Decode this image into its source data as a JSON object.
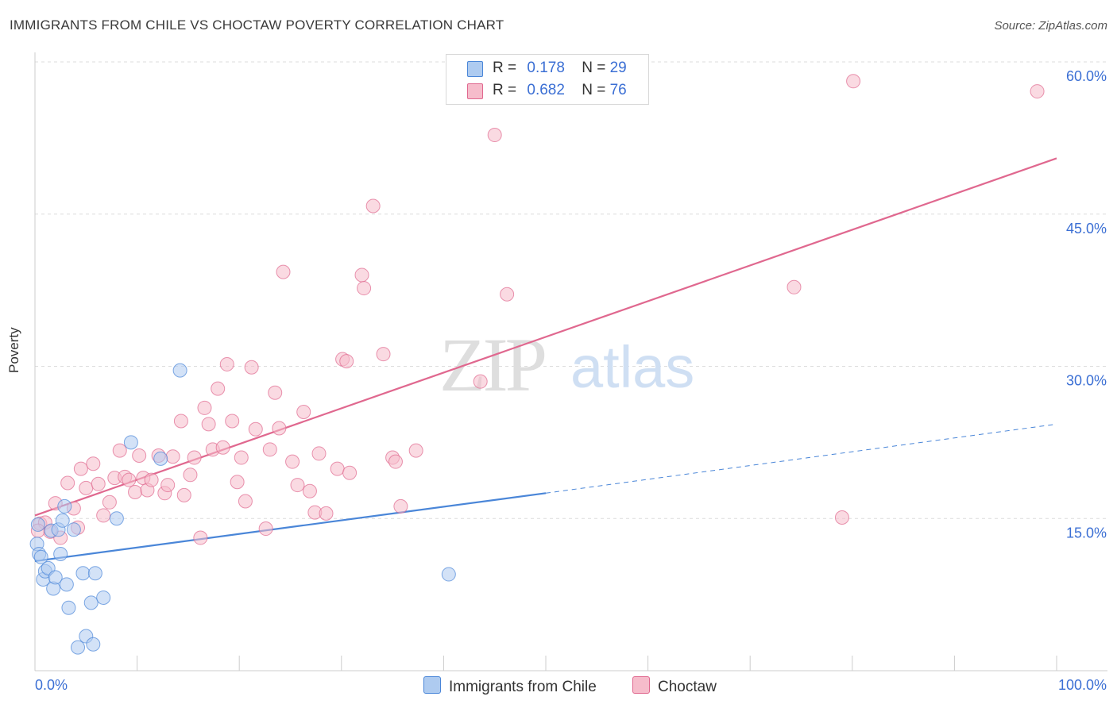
{
  "title": "IMMIGRANTS FROM CHILE VS CHOCTAW POVERTY CORRELATION CHART",
  "source": "Source: ZipAtlas.com",
  "watermark": {
    "zip": "ZIP",
    "atlas": "atlas"
  },
  "legend_top": [
    {
      "r_label": "R =",
      "r_value": "0.178",
      "n_label": "N =",
      "n_value": "29",
      "color": "#aecbf0"
    },
    {
      "r_label": "R =",
      "r_value": "0.682",
      "n_label": "N =",
      "n_value": "76",
      "color": "#f6bccb"
    }
  ],
  "legend_bottom": [
    {
      "label": "Immigrants from Chile",
      "color": "#aecbf0"
    },
    {
      "label": "Choctaw",
      "color": "#f6bccb"
    }
  ],
  "chart_data": {
    "type": "scatter",
    "title": "IMMIGRANTS FROM CHILE VS CHOCTAW POVERTY CORRELATION CHART",
    "xlabel": "",
    "ylabel": "Poverty",
    "xlim": [
      0,
      100
    ],
    "ylim": [
      0,
      60
    ],
    "x_tick_labels": [
      "0.0%",
      "100.0%"
    ],
    "y_tick_labels": [
      "15.0%",
      "30.0%",
      "45.0%",
      "60.0%"
    ],
    "y_ticks": [
      15,
      30,
      45,
      60
    ],
    "grid": true,
    "series": [
      {
        "name": "Immigrants from Chile",
        "color": "#4a86d8",
        "fill": "#aecbf0",
        "trend": {
          "x0": 0,
          "y0": 10.8,
          "x1": 50,
          "y1": 17.5,
          "dashed_to_x": 100,
          "dashed_to_y": 24.3
        },
        "points": [
          [
            0.2,
            12.5
          ],
          [
            0.4,
            11.5
          ],
          [
            0.6,
            11.2
          ],
          [
            0.8,
            9.0
          ],
          [
            1.0,
            9.8
          ],
          [
            1.3,
            10.1
          ],
          [
            1.6,
            13.8
          ],
          [
            1.8,
            8.1
          ],
          [
            2.0,
            9.2
          ],
          [
            2.3,
            13.9
          ],
          [
            2.5,
            11.5
          ],
          [
            2.7,
            14.8
          ],
          [
            2.9,
            16.2
          ],
          [
            3.1,
            8.5
          ],
          [
            3.3,
            6.2
          ],
          [
            3.8,
            13.9
          ],
          [
            4.2,
            2.3
          ],
          [
            4.7,
            9.6
          ],
          [
            5.0,
            3.4
          ],
          [
            5.5,
            6.7
          ],
          [
            5.7,
            2.6
          ],
          [
            5.9,
            9.6
          ],
          [
            6.7,
            7.2
          ],
          [
            8.0,
            15.0
          ],
          [
            9.4,
            22.5
          ],
          [
            12.3,
            20.9
          ],
          [
            14.2,
            29.6
          ],
          [
            40.5,
            9.5
          ],
          [
            0.3,
            14.4
          ]
        ]
      },
      {
        "name": "Choctaw",
        "color": "#e0688f",
        "fill": "#f6bccb",
        "trend": {
          "x0": 0,
          "y0": 15.3,
          "x1": 100,
          "y1": 50.5
        },
        "points": [
          [
            0.5,
            14.5
          ],
          [
            1.0,
            14.6
          ],
          [
            1.5,
            13.7
          ],
          [
            2.0,
            16.5
          ],
          [
            2.5,
            13.1
          ],
          [
            3.2,
            18.5
          ],
          [
            3.8,
            16.0
          ],
          [
            4.2,
            14.1
          ],
          [
            4.5,
            19.9
          ],
          [
            5.0,
            18.0
          ],
          [
            5.7,
            20.4
          ],
          [
            6.2,
            18.4
          ],
          [
            6.7,
            15.3
          ],
          [
            7.3,
            16.6
          ],
          [
            7.8,
            19.0
          ],
          [
            8.3,
            21.7
          ],
          [
            8.8,
            19.1
          ],
          [
            9.2,
            18.8
          ],
          [
            9.8,
            17.6
          ],
          [
            10.2,
            21.2
          ],
          [
            10.6,
            19.0
          ],
          [
            11.0,
            17.8
          ],
          [
            11.4,
            18.8
          ],
          [
            12.1,
            21.2
          ],
          [
            12.7,
            17.5
          ],
          [
            13.0,
            18.3
          ],
          [
            13.5,
            21.1
          ],
          [
            14.3,
            24.6
          ],
          [
            14.6,
            17.3
          ],
          [
            15.2,
            19.3
          ],
          [
            15.6,
            21.0
          ],
          [
            16.2,
            13.1
          ],
          [
            16.6,
            25.9
          ],
          [
            17.0,
            24.3
          ],
          [
            17.4,
            21.8
          ],
          [
            17.9,
            27.8
          ],
          [
            18.4,
            22.0
          ],
          [
            18.8,
            30.2
          ],
          [
            19.3,
            24.6
          ],
          [
            19.8,
            18.6
          ],
          [
            20.2,
            21.0
          ],
          [
            20.6,
            16.7
          ],
          [
            21.2,
            29.9
          ],
          [
            21.6,
            23.8
          ],
          [
            22.6,
            14.0
          ],
          [
            23.0,
            21.8
          ],
          [
            23.5,
            27.4
          ],
          [
            23.9,
            23.9
          ],
          [
            24.3,
            39.3
          ],
          [
            25.2,
            20.6
          ],
          [
            25.7,
            18.3
          ],
          [
            26.3,
            25.5
          ],
          [
            26.9,
            17.7
          ],
          [
            27.4,
            15.6
          ],
          [
            27.8,
            21.4
          ],
          [
            28.5,
            15.5
          ],
          [
            29.6,
            19.9
          ],
          [
            30.1,
            30.7
          ],
          [
            30.5,
            30.5
          ],
          [
            30.8,
            19.5
          ],
          [
            32.0,
            39.0
          ],
          [
            32.2,
            37.7
          ],
          [
            33.1,
            45.8
          ],
          [
            34.1,
            31.2
          ],
          [
            35.0,
            21.0
          ],
          [
            35.3,
            20.6
          ],
          [
            35.8,
            16.2
          ],
          [
            37.3,
            21.7
          ],
          [
            43.6,
            28.5
          ],
          [
            45.0,
            52.8
          ],
          [
            46.2,
            37.1
          ],
          [
            74.3,
            37.8
          ],
          [
            79.0,
            15.1
          ],
          [
            80.1,
            58.1
          ],
          [
            98.1,
            57.1
          ],
          [
            0.3,
            13.8
          ]
        ]
      }
    ]
  }
}
